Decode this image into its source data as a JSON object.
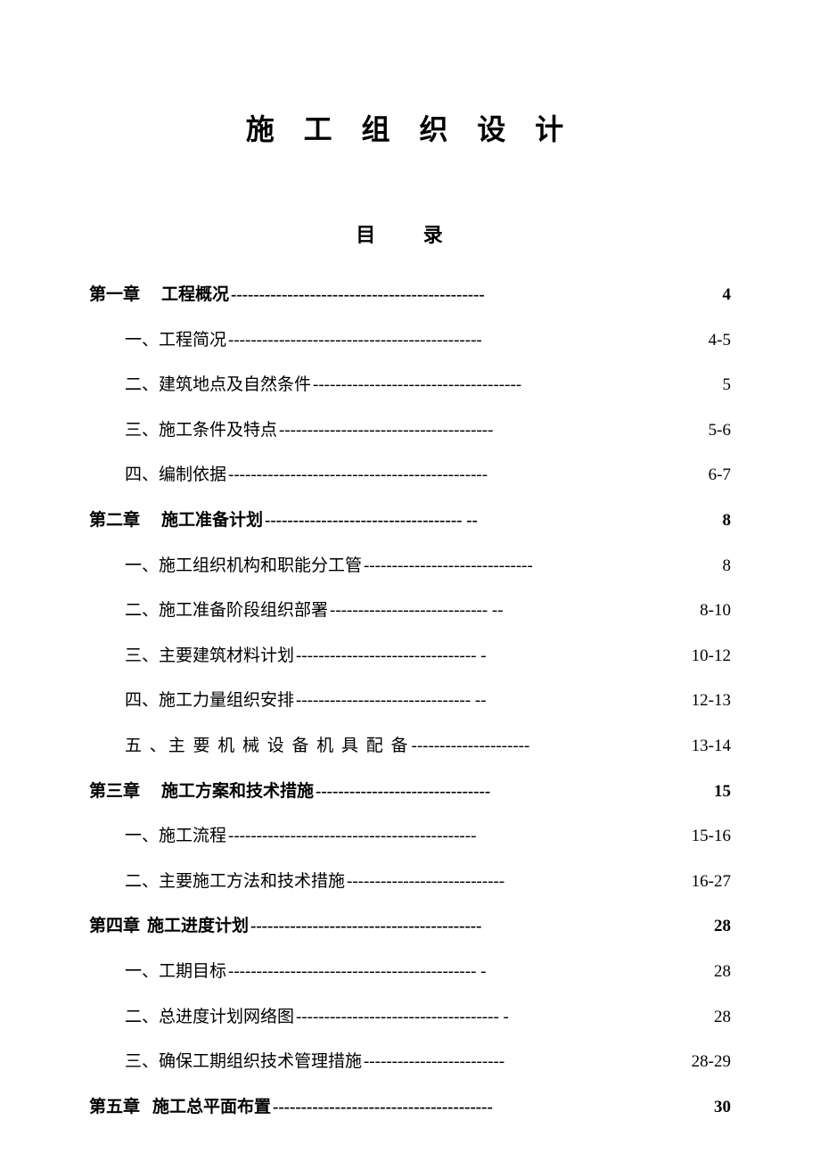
{
  "document": {
    "main_title": "施 工 组 织 设 计",
    "sub_title": "目   录",
    "title_fontsize": 32,
    "subtitle_fontsize": 22,
    "body_fontsize": 19,
    "text_color": "#000000",
    "background_color": "#ffffff",
    "leader_char": "-"
  },
  "toc": [
    {
      "type": "chapter",
      "label_prefix": "第一章",
      "label_text": "工程概况",
      "page": "4",
      "leader": "---------------------------------------------"
    },
    {
      "type": "section",
      "label": "一、工程简况",
      "page": "4-5",
      "leader": "---------------------------------------------"
    },
    {
      "type": "section",
      "label": "二、建筑地点及自然条件",
      "page": "5",
      "leader": "-------------------------------------"
    },
    {
      "type": "section",
      "label": "三、施工条件及特点 ",
      "page": "5-6",
      "leader": "--------------------------------------"
    },
    {
      "type": "section",
      "label": "四、编制依据",
      "page": "6-7",
      "leader": "----------------------------------------------"
    },
    {
      "type": "chapter",
      "label_prefix": "第二章",
      "label_text": "施工准备计划",
      "page": " 8",
      "leader": "----------------------------------- --"
    },
    {
      "type": "section",
      "label": "一、施工组织机构和职能分工管",
      "page": "8",
      "leader": "------------------------------"
    },
    {
      "type": "section",
      "label": "二、施工准备阶段组织部署",
      "page": "8-10",
      "leader": "---------------------------- --"
    },
    {
      "type": "section",
      "label": "三、主要建筑材料计划",
      "page": "10-12",
      "leader": "-------------------------------- -"
    },
    {
      "type": "section",
      "label": "四、施工力量组织安排",
      "page": "12-13",
      "leader": "------------------------------- --"
    },
    {
      "type": "section",
      "label": "五 、主 要 机 械 设 备 机 具 配 备 ",
      "page": "13-14",
      "leader": "---------------------",
      "spaced": true
    },
    {
      "type": "chapter",
      "label_prefix": "第三章",
      "label_text": "施工方案和技术措施",
      "page": "15",
      "leader": "-------------------------------"
    },
    {
      "type": "section",
      "label": "一、施工流程",
      "page": "15-16",
      "leader": "--------------------------------------------"
    },
    {
      "type": "section",
      "label": "二、主要施工方法和技术措施",
      "page": "16-27",
      "leader": "----------------------------"
    },
    {
      "type": "chapter",
      "label_prefix": "第四章",
      "label_text": "施工进度计划",
      "page": "28",
      "leader": "-----------------------------------------",
      "tight": true
    },
    {
      "type": "section",
      "label": "一、工期目标",
      "page": "28",
      "leader": "-------------------------------------------- -"
    },
    {
      "type": "section",
      "label": "二、总进度计划网络图",
      "page": "28",
      "leader": "------------------------------------ -"
    },
    {
      "type": "section",
      "label": "三、确保工期组织技术管理措施",
      "page": "28-29",
      "leader": "------------------------- "
    },
    {
      "type": "chapter",
      "label_prefix": "第五章",
      "label_text": "施工总平面布置",
      "page": "30",
      "leader": "---------------------------------------",
      "mid": true
    }
  ]
}
